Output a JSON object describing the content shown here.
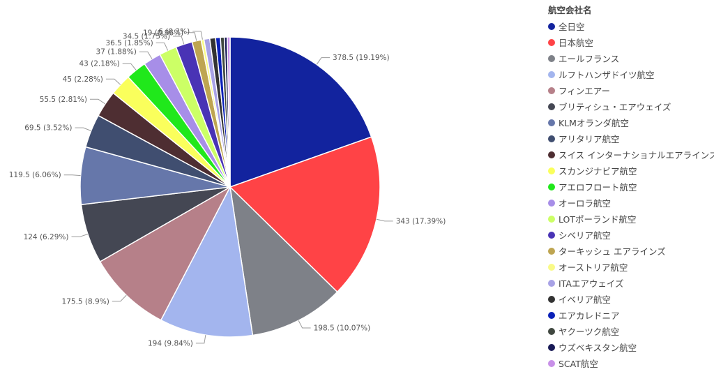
{
  "chart_data": {
    "type": "pie",
    "legend_title": "航空会社名",
    "legend_position": "right",
    "categories": [
      "全日空",
      "日本航空",
      "エールフランス",
      "ルフトハンザドイツ航空",
      "フィンエアー",
      "ブリティシュ・エアウェイズ",
      "KLMオランダ航空",
      "アリタリア航空",
      "スイス インターナショナルエアラインズ",
      "スカンジナビア航空",
      "アエロフロート航空",
      "オーロラ航空",
      "LOTポーランド航空",
      "シベリア航空",
      "ターキッシュ エアラインズ",
      "オーストリア航空",
      "ITAエアウェイズ",
      "イベリア航空",
      "エアカレドニア",
      "ヤクーツク航空",
      "ウズベキスタン航空",
      "SCAT航空"
    ],
    "values": [
      378.5,
      343,
      198.5,
      194,
      175.5,
      124,
      119.5,
      69.5,
      55.5,
      45,
      43,
      37,
      36.5,
      34.5,
      19,
      6,
      null,
      null,
      null,
      null,
      null,
      null
    ],
    "labels": [
      "378.5 (19.19%)",
      "343 (17.39%)",
      "198.5 (10.07%)",
      "194 (9.84%)",
      "175.5 (8.9%)",
      "124 (6.29%)",
      "119.5 (6.06%)",
      "69.5 (3.52%)",
      "55.5 (2.81%)",
      "45 (2.28%)",
      "43 (2.18%)",
      "37 (1.88%)",
      "36.5 (1.85%)",
      "34.5 (1.75%)",
      "19 (0.96%)",
      "6 (0.3%)",
      "",
      "",
      "",
      "",
      "",
      ""
    ],
    "colors": [
      "#12239E",
      "#FF4346",
      "#7E8188",
      "#A3B5EE",
      "#B68089",
      "#444753",
      "#6677AA",
      "#404E70",
      "#4E2E32",
      "#FAFF5C",
      "#20E81B",
      "#A78EE8",
      "#CCFF66",
      "#4933B5",
      "#BEA551",
      "#F9FA88",
      "#A8A2E6",
      "#333333",
      "#0A20B8",
      "#404840",
      "#181A56",
      "#C890E8"
    ],
    "small_values_unlabeled": [
      12,
      12,
      10,
      8,
      6,
      6
    ]
  }
}
